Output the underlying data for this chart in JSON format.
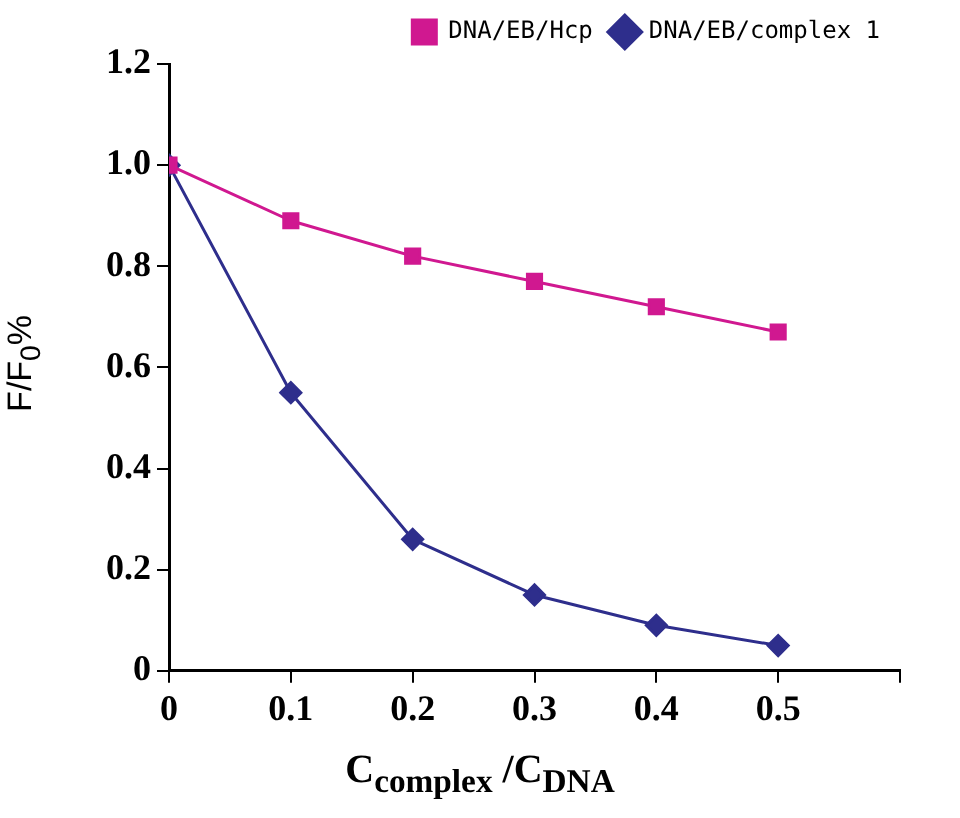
{
  "chart_data": {
    "type": "line",
    "xlabel": "C$_{complex}$ /C$_{DNA}$",
    "ylabel": "F/F$_{0}$%",
    "x": [
      0,
      0.1,
      0.2,
      0.3,
      0.4,
      0.5
    ],
    "series": [
      {
        "name": "DNA/EB/complex 1",
        "color": "#2e2e8c",
        "marker": "diamond",
        "values": [
          1.0,
          0.55,
          0.26,
          0.15,
          0.09,
          0.05
        ]
      },
      {
        "name": "DNA/EB/Hcp",
        "color": "#d01890",
        "marker": "square",
        "values": [
          1.0,
          0.89,
          0.82,
          0.77,
          0.72,
          0.67
        ]
      }
    ],
    "xlim": [
      0,
      0.6
    ],
    "xticks": [
      0,
      0.1,
      0.2,
      0.3,
      0.4,
      0.5,
      {
        "value": 0.6,
        "label": null
      }
    ],
    "ylim": [
      0,
      1.2
    ],
    "yticks": [
      0,
      0.2,
      0.4,
      0.6,
      0.8,
      {
        "value": 1,
        "label": "1.0"
      },
      1.2
    ],
    "grid": false,
    "legend": "top right",
    "line_style": "solid"
  }
}
